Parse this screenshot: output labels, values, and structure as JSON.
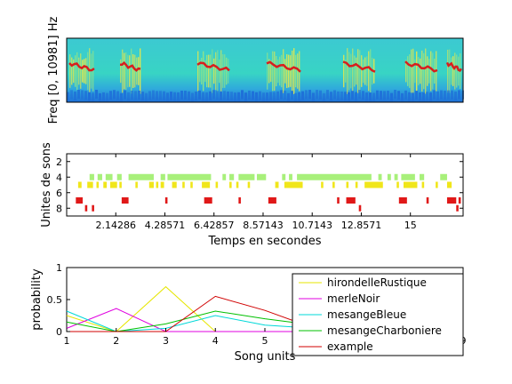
{
  "chart_data": [
    {
      "type": "heatmap",
      "ylabel": "Freq [0, 10981] Hz",
      "colors": {
        "low": "#1e6fd8",
        "mid": "#39d5c9",
        "high": "#e8e84a",
        "peak": "#d81e1e"
      }
    },
    {
      "type": "scatter",
      "xlabel": "Temps en secondes",
      "ylabel": "Unites de sons",
      "xlim": [
        0,
        17.3
      ],
      "ylim": [
        1,
        9
      ],
      "xticks": [
        2.14286,
        4.28571,
        6.42857,
        8.57143,
        10.7143,
        12.8571,
        15
      ],
      "xtick_labels": [
        "2.14286",
        "4.28571",
        "6.42857",
        "8.57143",
        "10.7143",
        "12.8571",
        "15"
      ],
      "yticks": [
        2,
        4,
        6,
        8
      ],
      "ytick_labels": [
        "2",
        "4",
        "6",
        "8"
      ],
      "rows": [
        {
          "unit": 4,
          "color": "#a8f07a",
          "segments": [
            [
              1.0,
              1.2
            ],
            [
              1.35,
              1.55
            ],
            [
              1.7,
              2.0
            ],
            [
              2.2,
              2.4
            ],
            [
              2.7,
              3.8
            ],
            [
              4.1,
              4.3
            ],
            [
              4.4,
              6.3
            ],
            [
              6.8,
              6.95
            ],
            [
              7.1,
              7.3
            ],
            [
              7.5,
              8.2
            ],
            [
              8.3,
              8.7
            ],
            [
              9.4,
              9.55
            ],
            [
              9.7,
              9.85
            ],
            [
              10.05,
              13.3
            ],
            [
              13.6,
              13.75
            ],
            [
              14.0,
              14.15
            ],
            [
              14.3,
              14.45
            ],
            [
              14.6,
              15.2
            ],
            [
              15.4,
              15.6
            ],
            [
              16.3,
              16.6
            ]
          ]
        },
        {
          "unit": 5,
          "color": "#f0e61a",
          "segments": [
            [
              0.5,
              0.65
            ],
            [
              0.9,
              1.15
            ],
            [
              1.3,
              1.4
            ],
            [
              1.6,
              1.75
            ],
            [
              1.9,
              2.2
            ],
            [
              2.3,
              2.4
            ],
            [
              3.0,
              3.1
            ],
            [
              3.6,
              3.8
            ],
            [
              3.9,
              4.0
            ],
            [
              4.1,
              4.25
            ],
            [
              4.6,
              4.8
            ],
            [
              5.05,
              5.15
            ],
            [
              5.4,
              5.5
            ],
            [
              5.9,
              6.25
            ],
            [
              6.5,
              6.6
            ],
            [
              7.1,
              7.2
            ],
            [
              7.4,
              7.5
            ],
            [
              7.9,
              8.0
            ],
            [
              9.1,
              9.25
            ],
            [
              9.5,
              10.3
            ],
            [
              11.1,
              11.2
            ],
            [
              11.6,
              11.7
            ],
            [
              12.2,
              12.3
            ],
            [
              12.6,
              12.7
            ],
            [
              13.0,
              13.8
            ],
            [
              14.4,
              14.5
            ],
            [
              14.7,
              15.3
            ],
            [
              15.5,
              15.6
            ],
            [
              16.1,
              16.2
            ],
            [
              16.6,
              16.8
            ]
          ]
        },
        {
          "unit": 7,
          "color": "#e01818",
          "segments": [
            [
              0.4,
              0.7
            ],
            [
              2.4,
              2.7
            ],
            [
              6.0,
              6.35
            ],
            [
              8.8,
              9.15
            ],
            [
              12.2,
              12.6
            ],
            [
              14.5,
              14.85
            ],
            [
              16.6,
              17.0
            ]
          ]
        },
        {
          "unit": 7,
          "color": "#e01818",
          "segments": [
            [
              4.3,
              4.4
            ],
            [
              7.5,
              7.6
            ],
            [
              11.8,
              11.9
            ],
            [
              15.7,
              15.8
            ],
            [
              17.1,
              17.2
            ]
          ]
        },
        {
          "unit": 8,
          "color": "#e01818",
          "segments": [
            [
              0.8,
              0.9
            ],
            [
              1.1,
              1.2
            ],
            [
              12.75,
              12.85
            ],
            [
              17.0,
              17.1
            ]
          ]
        }
      ]
    },
    {
      "type": "line",
      "xlabel": "Song units",
      "ylabel": "probability",
      "x": [
        1,
        2,
        3,
        4,
        5,
        6,
        7,
        8,
        9
      ],
      "xlim": [
        1,
        9
      ],
      "ylim": [
        0,
        1
      ],
      "xtick_labels": [
        "1",
        "2",
        "3",
        "4",
        "5",
        "6",
        "7",
        "8",
        "9"
      ],
      "ytick_labels": [
        "0",
        "0.5",
        "1"
      ],
      "legend_position": "top-right",
      "series": [
        {
          "name": "hirondelleRustique",
          "color": "#e6e600",
          "values": [
            0.25,
            0.0,
            0.7,
            0.0,
            0.0,
            0.0,
            0.0,
            0.0,
            0.05
          ]
        },
        {
          "name": "merleNoir",
          "color": "#e000e0",
          "values": [
            0.05,
            0.36,
            0.0,
            0.0,
            0.0,
            0.0,
            0.0,
            0.0,
            0.0
          ]
        },
        {
          "name": "mesangeBleue",
          "color": "#00d8d8",
          "values": [
            0.32,
            0.0,
            0.05,
            0.25,
            0.1,
            0.05,
            0.0,
            0.0,
            0.0
          ]
        },
        {
          "name": "mesangeCharboniere",
          "color": "#00c000",
          "values": [
            0.15,
            0.0,
            0.12,
            0.32,
            0.2,
            0.1,
            0.05,
            0.1,
            0.15
          ]
        },
        {
          "name": "example",
          "color": "#d00000",
          "values": [
            0.0,
            0.0,
            0.0,
            0.55,
            0.33,
            0.05,
            0.0,
            0.0,
            0.0
          ]
        }
      ]
    }
  ]
}
